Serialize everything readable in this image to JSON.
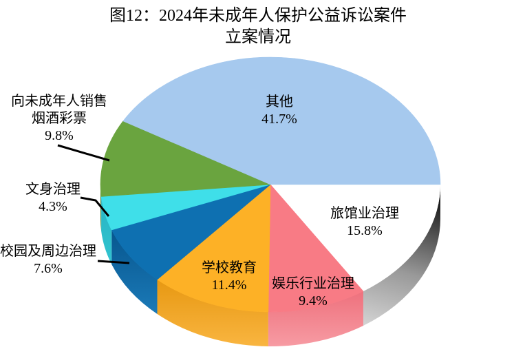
{
  "title": {
    "line1": "图12：2024年未成年人保护公益诉讼案件",
    "line2": "立案情况"
  },
  "chart_data": {
    "type": "pie",
    "style": "3d-exploded-none",
    "title": "图12：2024年未成年人保护公益诉讼案件立案情况",
    "unit": "%",
    "start_angle": "east",
    "direction": "clockwise",
    "legend": "none",
    "slices": [
      {
        "key": "hotel",
        "label": "旅馆业治理",
        "value": 15.8,
        "pct_text": "15.8%",
        "color": "#ffffff",
        "side": [
          "#111111",
          "#999999",
          "#d9d9d9"
        ]
      },
      {
        "key": "entertainment",
        "label": "娱乐行业治理",
        "value": 9.4,
        "pct_text": "9.4%",
        "color": "#f87b85",
        "side": [
          "#ee717d",
          "#f79ba3"
        ]
      },
      {
        "key": "school",
        "label": "学校教育",
        "value": 11.4,
        "pct_text": "11.4%",
        "color": "#fdb126",
        "side": [
          "#e79812",
          "#f9b540"
        ]
      },
      {
        "key": "campus",
        "label": "校园及周边治理",
        "value": 7.6,
        "pct_text": "7.6%",
        "color": "#0e70b1",
        "side": [
          "#07568e",
          "#1b7ab8"
        ]
      },
      {
        "key": "tattoo",
        "label": "文身治理",
        "value": 4.3,
        "pct_text": "4.3%",
        "color": "#3fdfe9",
        "side": [
          "#28b4c2",
          "#31c4d1"
        ]
      },
      {
        "key": "sell-tobacco",
        "label": "向未成年人销售烟酒彩票",
        "value": 9.8,
        "pct_text": "9.8%",
        "color": "#6aa43f",
        "side": [
          "#4d8030",
          "#57893a"
        ]
      },
      {
        "key": "other",
        "label": "其他",
        "value": 41.7,
        "pct_text": "41.7%",
        "color": "#a6c9ee",
        "side": null
      }
    ],
    "labels": {
      "other": {
        "line1": "其他",
        "line2": "41.7%"
      },
      "hotel": {
        "line1": "旅馆业治理",
        "line2": "15.8%"
      },
      "entertainment": {
        "line1": "娱乐行业治理",
        "line2": "9.4%"
      },
      "school": {
        "line1": "学校教育",
        "line2": "11.4%"
      },
      "campus": {
        "line1": "校园及周边治理",
        "line2": "7.6%"
      },
      "tattoo": {
        "line1": "文身治理",
        "line2": "4.3%"
      },
      "sell-tobacco": {
        "line1": "向未成年人销售",
        "line2": "烟酒彩票",
        "line3": "9.8%"
      }
    },
    "leader_line_color": "#000000",
    "text_color": "#000000",
    "background": "#ffffff"
  }
}
